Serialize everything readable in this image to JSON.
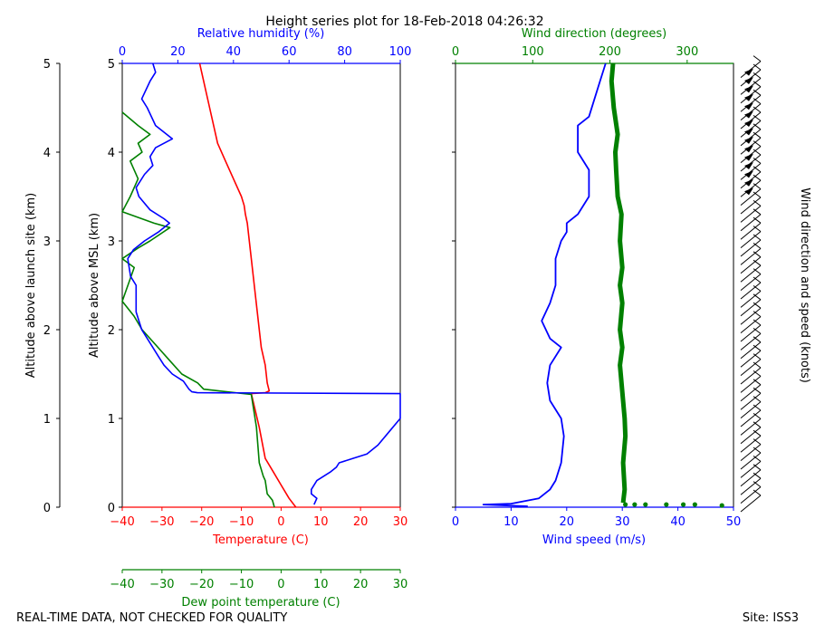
{
  "chart_data": {
    "type": "line",
    "title": "Height series plot for 18-Feb-2018 04:26:32",
    "footer_left": "REAL-TIME DATA, NOT CHECKED FOR QUALITY",
    "footer_right": "Site: ISS3",
    "launch_axis": {
      "label": "Altitude above launch site (km)",
      "ticks": [
        "0",
        "1",
        "2",
        "3",
        "4",
        "5"
      ],
      "range": [
        0,
        5
      ]
    },
    "left_panel": {
      "ylabel": "Altitude above MSL (km)",
      "ylim": [
        0,
        5
      ],
      "yticks": [
        "0",
        "1",
        "2",
        "3",
        "4",
        "5"
      ],
      "temperature_axis": {
        "label": "Temperature (C)",
        "range": [
          -40,
          30
        ],
        "ticks": [
          "−40",
          "−30",
          "−20",
          "−10",
          "0",
          "10",
          "20",
          "30"
        ]
      },
      "dewpoint_axis": {
        "label": "Dew point temperature (C)",
        "range": [
          -40,
          30
        ],
        "ticks": [
          "−40",
          "−30",
          "−20",
          "−10",
          "0",
          "10",
          "20",
          "30"
        ]
      },
      "humidity_axis": {
        "label": "Relative humidity (%)",
        "range": [
          0,
          100
        ],
        "ticks": [
          "0",
          "20",
          "40",
          "60",
          "80",
          "100"
        ]
      },
      "series": [
        {
          "name": "Temperature",
          "color": "#ff0000",
          "points": [
            [
              3.7,
              0
            ],
            [
              2.0,
              0.1
            ],
            [
              0,
              0.25
            ],
            [
              -2,
              0.4
            ],
            [
              -4,
              0.55
            ],
            [
              -5.5,
              0.9
            ],
            [
              -7.5,
              1.28
            ],
            [
              -4,
              1.29
            ],
            [
              -3,
              1.31
            ],
            [
              -3.5,
              1.4
            ],
            [
              -4,
              1.6
            ],
            [
              -5,
              1.8
            ],
            [
              -5.5,
              2.0
            ],
            [
              -6,
              2.2
            ],
            [
              -6.5,
              2.4
            ],
            [
              -7,
              2.6
            ],
            [
              -7.5,
              2.8
            ],
            [
              -8,
              3.0
            ],
            [
              -8.5,
              3.2
            ],
            [
              -9,
              3.3
            ],
            [
              -9.3,
              3.4
            ],
            [
              -10,
              3.5
            ],
            [
              -12,
              3.7
            ],
            [
              -14,
              3.9
            ],
            [
              -16,
              4.1
            ],
            [
              -17,
              4.3
            ],
            [
              -18,
              4.5
            ],
            [
              -19,
              4.7
            ],
            [
              -20,
              4.9
            ],
            [
              -20.5,
              5.0
            ]
          ]
        },
        {
          "name": "Dew point",
          "color": "#008000",
          "points": [
            [
              -1.7,
              0
            ],
            [
              -2.2,
              0.08
            ],
            [
              -3.5,
              0.15
            ],
            [
              -4,
              0.3
            ],
            [
              -4.5,
              0.35
            ],
            [
              -5.5,
              0.5
            ],
            [
              -6.2,
              0.9
            ],
            [
              -7.5,
              1.27
            ],
            [
              -19.5,
              1.33
            ],
            [
              -21,
              1.4
            ],
            [
              -25,
              1.5
            ],
            [
              -28,
              1.65
            ],
            [
              -31,
              1.8
            ],
            [
              -35,
              2.0
            ],
            [
              -37,
              2.15
            ],
            [
              -40,
              2.32
            ],
            [
              -37,
              2.7
            ],
            [
              -40,
              2.8
            ],
            [
              -36,
              2.92
            ],
            [
              -33,
              3.0
            ],
            [
              -28,
              3.15
            ],
            [
              -32,
              3.2
            ],
            [
              -40,
              3.33
            ],
            [
              -38,
              3.5
            ],
            [
              -36,
              3.7
            ],
            [
              -38,
              3.9
            ],
            [
              -35,
              4.0
            ],
            [
              -36,
              4.1
            ],
            [
              -33,
              4.2
            ],
            [
              -36,
              4.3
            ],
            [
              -40,
              4.45
            ]
          ]
        },
        {
          "name": "Relative humidity",
          "color": "#0000ff",
          "points": [
            [
              69,
              0.03
            ],
            [
              70,
              0.1
            ],
            [
              68,
              0.15
            ],
            [
              68,
              0.2
            ],
            [
              70,
              0.3
            ],
            [
              75,
              0.4
            ],
            [
              77,
              0.45
            ],
            [
              78,
              0.5
            ],
            [
              83,
              0.55
            ],
            [
              88,
              0.6
            ],
            [
              92,
              0.7
            ],
            [
              96,
              0.85
            ],
            [
              100,
              1.0
            ],
            [
              100,
              1.28
            ],
            [
              27,
              1.29
            ],
            [
              25,
              1.3
            ],
            [
              24,
              1.33
            ],
            [
              22,
              1.42
            ],
            [
              18,
              1.5
            ],
            [
              15,
              1.6
            ],
            [
              13,
              1.7
            ],
            [
              10,
              1.85
            ],
            [
              7,
              2.0
            ],
            [
              5,
              2.2
            ],
            [
              5,
              2.5
            ],
            [
              3,
              2.6
            ],
            [
              2,
              2.8
            ],
            [
              4,
              2.9
            ],
            [
              8,
              3.0
            ],
            [
              13,
              3.1
            ],
            [
              17,
              3.2
            ],
            [
              15,
              3.25
            ],
            [
              10,
              3.35
            ],
            [
              6,
              3.5
            ],
            [
              5,
              3.6
            ],
            [
              8,
              3.75
            ],
            [
              11,
              3.85
            ],
            [
              10,
              3.95
            ],
            [
              12,
              4.05
            ],
            [
              18,
              4.15
            ],
            [
              12,
              4.3
            ],
            [
              9,
              4.5
            ],
            [
              7,
              4.6
            ],
            [
              10,
              4.8
            ],
            [
              12,
              4.9
            ],
            [
              11,
              5.0
            ]
          ]
        }
      ]
    },
    "right_panel": {
      "ylim": [
        0,
        5
      ],
      "wind_speed_axis": {
        "label": "Wind speed (m/s)",
        "range": [
          0,
          50
        ],
        "ticks": [
          "0",
          "10",
          "20",
          "30",
          "40",
          "50"
        ]
      },
      "wind_direction_axis": {
        "label": "Wind direction (degrees)",
        "range": [
          0,
          360
        ],
        "ticks": [
          "0",
          "100",
          "200",
          "300"
        ]
      },
      "barb_label": "Wind direction and speed (knots)",
      "series": [
        {
          "name": "Wind speed",
          "color": "#0000ff",
          "points": [
            [
              13,
              0.01
            ],
            [
              5,
              0.03
            ],
            [
              10,
              0.04
            ],
            [
              15,
              0.1
            ],
            [
              17,
              0.2
            ],
            [
              18,
              0.3
            ],
            [
              19,
              0.5
            ],
            [
              19.5,
              0.8
            ],
            [
              19,
              1.0
            ],
            [
              17,
              1.2
            ],
            [
              16.5,
              1.4
            ],
            [
              17,
              1.6
            ],
            [
              19,
              1.8
            ],
            [
              17,
              1.9
            ],
            [
              15.5,
              2.1
            ],
            [
              17,
              2.3
            ],
            [
              18,
              2.5
            ],
            [
              18,
              2.8
            ],
            [
              19,
              3.0
            ],
            [
              20,
              3.1
            ],
            [
              20,
              3.2
            ],
            [
              22,
              3.3
            ],
            [
              24,
              3.5
            ],
            [
              24,
              3.8
            ],
            [
              22,
              4.0
            ],
            [
              22,
              4.2
            ],
            [
              22,
              4.3
            ],
            [
              24,
              4.4
            ],
            [
              25,
              4.6
            ],
            [
              26,
              4.8
            ],
            [
              27,
              5.0
            ]
          ]
        },
        {
          "name": "Wind direction",
          "color": "#008000",
          "points": [
            [
              217,
              0.05
            ],
            [
              219,
              0.2
            ],
            [
              217,
              0.5
            ],
            [
              220,
              0.8
            ],
            [
              219,
              1.0
            ],
            [
              216,
              1.3
            ],
            [
              213,
              1.6
            ],
            [
              216,
              1.8
            ],
            [
              213,
              2.0
            ],
            [
              216,
              2.3
            ],
            [
              213,
              2.5
            ],
            [
              216,
              2.7
            ],
            [
              213,
              3.0
            ],
            [
              215,
              3.3
            ],
            [
              210,
              3.5
            ],
            [
              208,
              3.8
            ],
            [
              207,
              4.0
            ],
            [
              210,
              4.2
            ],
            [
              205,
              4.5
            ],
            [
              202,
              4.8
            ],
            [
              204,
              5.0
            ]
          ],
          "surface_dots": [
            [
              220,
              0.03
            ],
            [
              232,
              0.03
            ],
            [
              246,
              0.03
            ],
            [
              273,
              0.03
            ],
            [
              295,
              0.03
            ],
            [
              310,
              0.03
            ],
            [
              345,
              0.02
            ]
          ]
        }
      ]
    }
  }
}
